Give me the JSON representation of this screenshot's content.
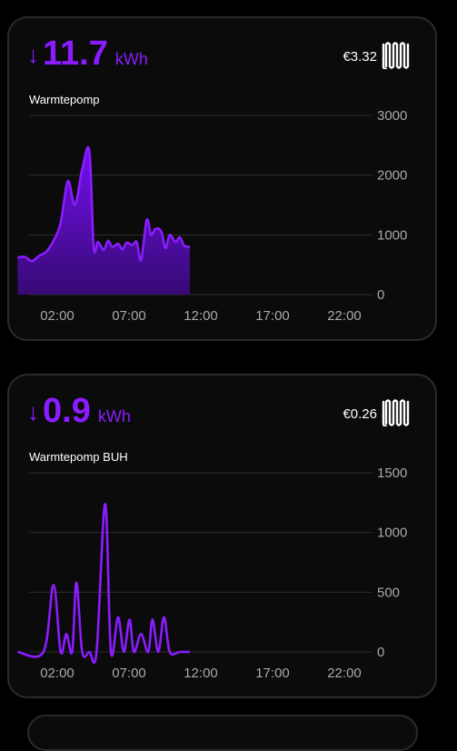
{
  "colors": {
    "accent": "#8a1cff",
    "grid": "#2e2e2e",
    "tick": "#a8a8a8"
  },
  "cards": [
    {
      "arrow": "↓",
      "value": "11.7",
      "unit": "kWh",
      "name": "Warmtepomp",
      "cost": "€3.32",
      "icon": "radiator-icon",
      "chart_data": {
        "type": "area",
        "x_ticks": [
          "02:00",
          "07:00",
          "12:00",
          "17:00",
          "22:00"
        ],
        "y_ticks": [
          "3000",
          "2000",
          "1000",
          "0"
        ],
        "ylim": [
          0,
          3000
        ],
        "xlim": [
          0,
          24
        ],
        "x": [
          0,
          0.5,
          1,
          1.5,
          2,
          2.5,
          3,
          3.5,
          4,
          4.5,
          5,
          5.3,
          5.6,
          6,
          6.3,
          6.6,
          7,
          7.3,
          7.6,
          8,
          8.3,
          8.6,
          9,
          9.3,
          9.6,
          10,
          10.3,
          10.6,
          11,
          11.3,
          11.6,
          12
        ],
        "y": [
          620,
          630,
          560,
          650,
          720,
          900,
          1200,
          1900,
          1500,
          2100,
          2400,
          800,
          880,
          750,
          900,
          800,
          850,
          760,
          870,
          830,
          880,
          580,
          1250,
          1000,
          1100,
          1060,
          780,
          1000,
          880,
          960,
          820,
          800
        ]
      }
    },
    {
      "arrow": "↓",
      "value": "0.9",
      "unit": "kWh",
      "name": "Warmtepomp BUH",
      "cost": "€0.26",
      "icon": "radiator-icon",
      "chart_data": {
        "type": "line",
        "x_ticks": [
          "02:00",
          "07:00",
          "12:00",
          "17:00",
          "22:00"
        ],
        "y_ticks": [
          "1500",
          "1000",
          "500",
          "0"
        ],
        "ylim": [
          0,
          1500
        ],
        "xlim": [
          0,
          24
        ],
        "x": [
          0,
          1.8,
          2.5,
          3,
          3.4,
          3.8,
          4.1,
          4.5,
          5,
          5.5,
          6.1,
          6.5,
          7,
          7.4,
          7.8,
          8.1,
          8.6,
          9.1,
          9.4,
          9.8,
          10.2,
          10.6,
          11.3,
          12
        ],
        "y": [
          0,
          0,
          560,
          0,
          150,
          0,
          580,
          0,
          0,
          0,
          1240,
          0,
          290,
          0,
          270,
          0,
          150,
          0,
          270,
          0,
          290,
          0,
          0,
          0
        ]
      }
    }
  ]
}
